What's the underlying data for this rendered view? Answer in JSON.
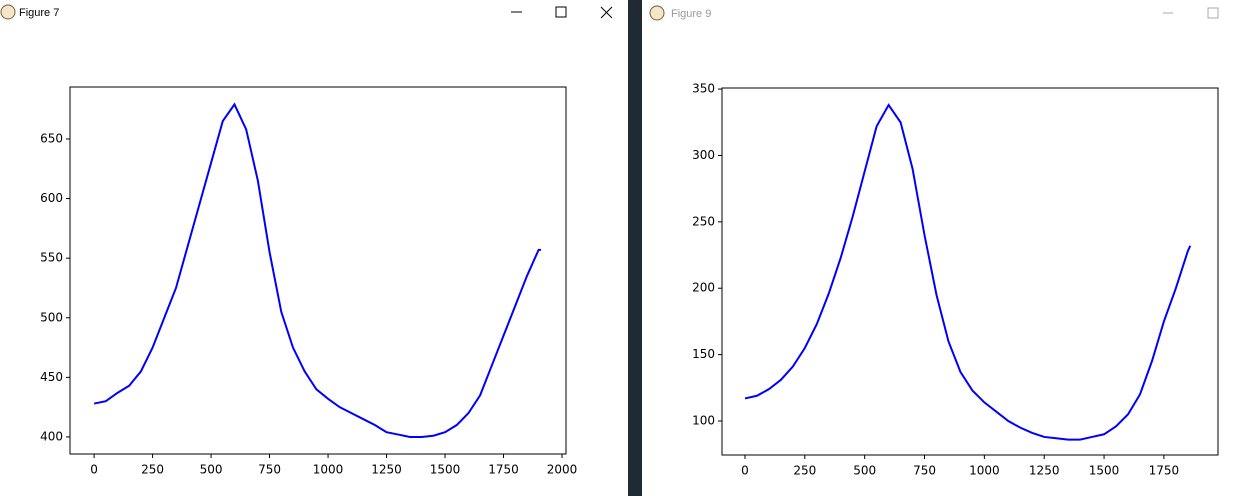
{
  "windows": [
    "Figure 7",
    "Figure 9"
  ],
  "chart_data": [
    {
      "type": "line",
      "color": "#0000ff",
      "x": [
        0,
        50,
        100,
        150,
        200,
        250,
        300,
        350,
        400,
        450,
        500,
        550,
        600,
        650,
        700,
        750,
        800,
        850,
        900,
        950,
        1000,
        1050,
        1100,
        1150,
        1200,
        1250,
        1300,
        1350,
        1400,
        1450,
        1500,
        1550,
        1600,
        1650,
        1700,
        1750,
        1800,
        1850,
        1900,
        1910
      ],
      "values": [
        428,
        430,
        437,
        443,
        455,
        475,
        500,
        525,
        560,
        595,
        630,
        665,
        679,
        658,
        615,
        555,
        505,
        475,
        455,
        440,
        432,
        425,
        420,
        415,
        410,
        404,
        402,
        400,
        400,
        401,
        404,
        410,
        420,
        435,
        460,
        485,
        510,
        535,
        557,
        557
      ],
      "xlim": [
        -103,
        2017
      ],
      "ylim": [
        385.7,
        693.6
      ],
      "xticks": [
        0,
        250,
        500,
        750,
        1000,
        1250,
        1500,
        1750,
        2000
      ],
      "yticks": [
        400,
        450,
        500,
        550,
        600,
        650
      ]
    },
    {
      "type": "line",
      "color": "#0000ff",
      "x": [
        0,
        50,
        100,
        150,
        200,
        250,
        300,
        350,
        400,
        450,
        500,
        550,
        600,
        650,
        700,
        750,
        800,
        850,
        900,
        950,
        1000,
        1050,
        1100,
        1150,
        1200,
        1250,
        1300,
        1350,
        1400,
        1450,
        1500,
        1550,
        1600,
        1650,
        1700,
        1750,
        1800,
        1850,
        1860
      ],
      "values": [
        117,
        119,
        124,
        131,
        141,
        155,
        173,
        196,
        223,
        254,
        288,
        322,
        338,
        325,
        290,
        240,
        195,
        160,
        137,
        123,
        114,
        107,
        100,
        95,
        91,
        88,
        87,
        86,
        86,
        88,
        90,
        96,
        105,
        120,
        145,
        175,
        200,
        228,
        232
      ],
      "xlim": [
        -96,
        1976
      ],
      "ylim": [
        74.4,
        350.8
      ],
      "xticks": [
        0,
        250,
        500,
        750,
        1000,
        1250,
        1500,
        1750
      ],
      "yticks": [
        100,
        150,
        200,
        250,
        300,
        350
      ]
    }
  ]
}
